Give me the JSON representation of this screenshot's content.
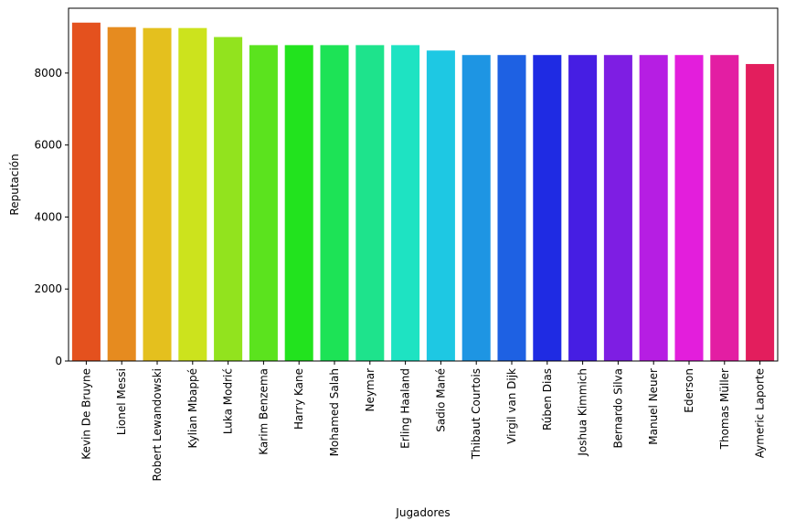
{
  "chart_data": {
    "type": "bar",
    "title": "",
    "xlabel": "Jugadores",
    "ylabel": "Reputación",
    "ylim": [
      0,
      9800
    ],
    "yticks": [
      0,
      2000,
      4000,
      6000,
      8000
    ],
    "grid": false,
    "categories": [
      "Kevin De Bruyne",
      "Lionel Messi",
      "Robert Lewandowski",
      "Kylian Mbappé",
      "Luka Modrić",
      "Karim Benzema",
      "Harry Kane",
      "Mohamed Salah",
      "Neymar",
      "Erling Haaland",
      "Sadio Mané",
      "Thibaut Courtois",
      "Virgil van Dijk",
      "Rúben Dias",
      "Joshua Kimmich",
      "Bernardo Silva",
      "Manuel Neuer",
      "Ederson",
      "Thomas Müller",
      "Aymeric Laporte"
    ],
    "values": [
      9400,
      9275,
      9250,
      9250,
      9000,
      8775,
      8775,
      8775,
      8775,
      8775,
      8625,
      8500,
      8500,
      8500,
      8500,
      8500,
      8500,
      8500,
      8500,
      8250
    ],
    "colors": [
      "#e4511e",
      "#e68b1f",
      "#e4c01e",
      "#cce31d",
      "#92e31e",
      "#5be31e",
      "#22e31e",
      "#1de356",
      "#1ee38c",
      "#1ee3c2",
      "#1ec8e3",
      "#1e95e3",
      "#1e61e3",
      "#1f2be3",
      "#461ee3",
      "#7e1ee3",
      "#b61ee3",
      "#e31edc",
      "#e31ea3",
      "#e31e5d"
    ]
  }
}
